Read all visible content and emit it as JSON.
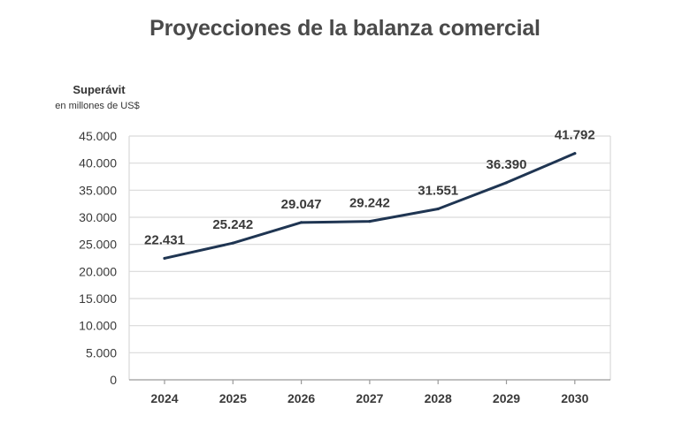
{
  "chart_data": {
    "type": "line",
    "title": "Proyecciones de la balanza comercial",
    "ylabel": "Superávit",
    "ylabel_sub": "en millones de US$",
    "xlabel": "",
    "x": [
      "2024",
      "2025",
      "2026",
      "2027",
      "2028",
      "2029",
      "2030"
    ],
    "series": [
      {
        "values": [
          22431,
          25242,
          29047,
          29242,
          31551,
          36390,
          41792
        ],
        "data_labels": [
          "22.431",
          "25.242",
          "29.047",
          "29.242",
          "31.551",
          "36.390",
          "41.792"
        ],
        "color": "#1f3552"
      }
    ],
    "ylim": [
      0,
      45000
    ],
    "yticks": [
      0,
      5000,
      10000,
      15000,
      20000,
      25000,
      30000,
      35000,
      40000,
      45000
    ],
    "ytick_labels": [
      "0",
      "5.000",
      "10.000",
      "15.000",
      "20.000",
      "25.000",
      "30.000",
      "35.000",
      "40.000",
      "45.000"
    ],
    "grid": true,
    "legend": "none",
    "colors": {
      "line": "#1f3552",
      "grid": "#d9d9d9",
      "text": "#3a3a3a"
    }
  }
}
